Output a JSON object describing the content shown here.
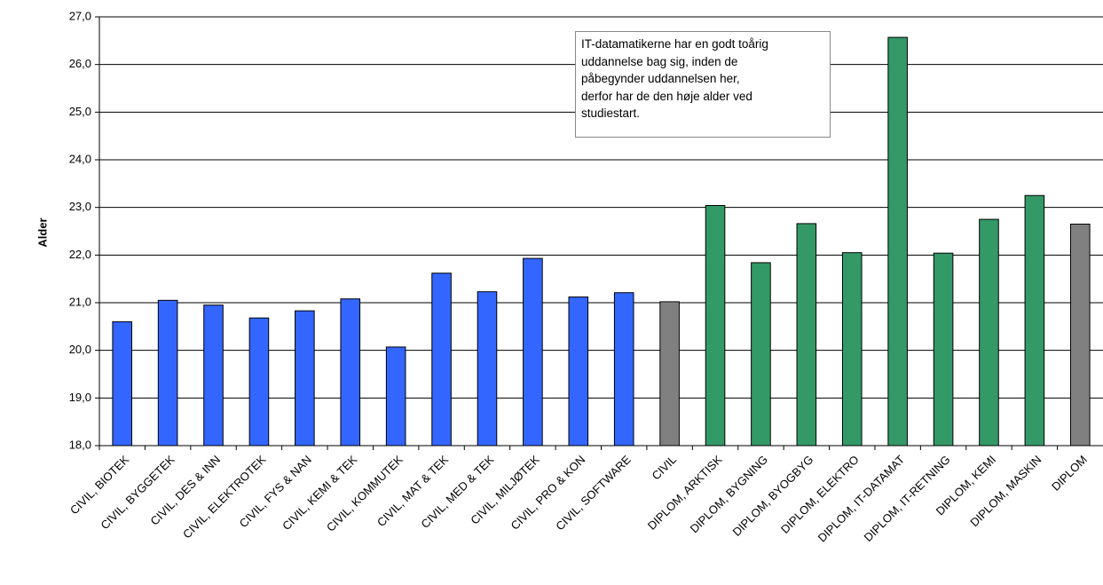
{
  "chart_data": {
    "type": "bar",
    "y_label": "Alder",
    "categories": [
      "CIVIL, BIOTEK",
      "CIVIL, BYGGETEK",
      "CIVIL, DES & INN",
      "CIVIL, ELEKTROTEK",
      "CIVIL, FYS & NAN",
      "CIVIL, KEMI & TEK",
      "CIVIL, KOMMUTEK",
      "CIVIL, MAT & TEK",
      "CIVIL, MED & TEK",
      "CIVIL, MILJØTEK",
      "CIVIL, PRO & KON",
      "CIVIL, SOFTWARE",
      "CIVIL",
      "DIPLOM, ARKTISK",
      "DIPLOM, BYGNING",
      "DIPLOM, BYOGBYG",
      "DIPLOM, ELEKTRO",
      "DIPLOM, IT-DATAMAT",
      "DIPLOM, IT-RETNING",
      "DIPLOM, KEMI",
      "DIPLOM, MASKIN",
      "DIPLOM"
    ],
    "values": [
      20.6,
      21.05,
      20.95,
      20.68,
      20.83,
      21.08,
      20.07,
      21.62,
      21.23,
      21.93,
      21.12,
      21.21,
      21.02,
      23.04,
      21.84,
      22.66,
      22.05,
      26.57,
      22.04,
      22.75,
      23.25,
      22.65
    ],
    "colors": [
      "#3366ff",
      "#3366ff",
      "#3366ff",
      "#3366ff",
      "#3366ff",
      "#3366ff",
      "#3366ff",
      "#3366ff",
      "#3366ff",
      "#3366ff",
      "#3366ff",
      "#3366ff",
      "#808080",
      "#339966",
      "#339966",
      "#339966",
      "#339966",
      "#339966",
      "#339966",
      "#339966",
      "#339966",
      "#808080"
    ],
    "ylim": [
      18,
      27
    ],
    "yticks": [
      {
        "value": 18,
        "label": "18,0"
      },
      {
        "value": 19,
        "label": "19,0"
      },
      {
        "value": 20,
        "label": "20,0"
      },
      {
        "value": 21,
        "label": "21,0"
      },
      {
        "value": 22,
        "label": "22,0"
      },
      {
        "value": 23,
        "label": "23,0"
      },
      {
        "value": 24,
        "label": "24,0"
      },
      {
        "value": 25,
        "label": "25,0"
      },
      {
        "value": 26,
        "label": "26,0"
      },
      {
        "value": 27,
        "label": "27,0"
      }
    ],
    "grid": true,
    "annotation": [
      "IT-datamatikerne har en godt toårig",
      "uddannelse bag sig, inden de",
      "påbegynder uddannelsen her,",
      "derfor har de den høje alder ved",
      "studiestart."
    ]
  }
}
